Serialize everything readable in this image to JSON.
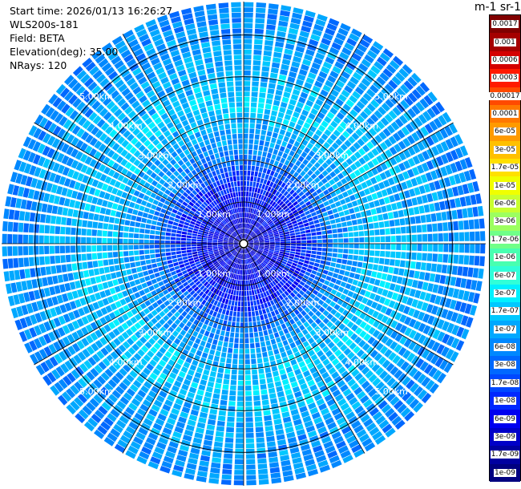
{
  "info": {
    "start_time": "Start time: 2026/01/13 16:26:27",
    "instrument": "WLS200s-181",
    "field": "Field: BETA",
    "elevation": "Elevation(deg): 35.00",
    "nrays": "NRays: 120"
  },
  "colorbar": {
    "title": "m-1 sr-1",
    "levels": [
      {
        "label": "0.0017",
        "color": "#ffffff"
      },
      {
        "label": "0.001",
        "color": "#ffffff"
      },
      {
        "label": "0.0006",
        "color": "#ffffff"
      },
      {
        "label": "0.0003",
        "color": "#ffffff"
      },
      {
        "label": "0.00017",
        "color": "#ffffff"
      },
      {
        "label": "0.0001",
        "color": "#ffffff"
      },
      {
        "label": "6e-05",
        "color": "#ffffff"
      },
      {
        "label": "3e-05",
        "color": "#ffffff"
      },
      {
        "label": "1.7e-05",
        "color": "#ffffff"
      },
      {
        "label": "1e-05",
        "color": "#ffffff"
      },
      {
        "label": "6e-06",
        "color": "#ffffff"
      },
      {
        "label": "3e-06",
        "color": "#ffffff"
      },
      {
        "label": "1.7e-06",
        "color": "#ffffff"
      },
      {
        "label": "1e-06",
        "color": "#ffffff"
      },
      {
        "label": "6e-07",
        "color": "#ffffff"
      },
      {
        "label": "3e-07",
        "color": "#ffffff"
      },
      {
        "label": "1.7e-07",
        "color": "#ffffff"
      },
      {
        "label": "1e-07",
        "color": "#ffffff"
      },
      {
        "label": "6e-08",
        "color": "#ffffff"
      },
      {
        "label": "3e-08",
        "color": "#ffffff"
      },
      {
        "label": "1.7e-08",
        "color": "#ffffff"
      },
      {
        "label": "1e-08",
        "color": "#ffffff"
      },
      {
        "label": "6e-09",
        "color": "#ffffff"
      },
      {
        "label": "3e-09",
        "color": "#ffffff"
      },
      {
        "label": "1.7e-09",
        "color": "#ffffff"
      },
      {
        "label": "1e-09",
        "color": "#ffffff"
      }
    ],
    "swatches": [
      "#800000",
      "#a50000",
      "#d40000",
      "#ff1a00",
      "#ff4a00",
      "#ff7800",
      "#ff9a00",
      "#ffc000",
      "#ffe000",
      "#f0ff00",
      "#c8ff30",
      "#9cff60",
      "#70ff88",
      "#48ffb0",
      "#30ffd8",
      "#00f0ff",
      "#00c8ff",
      "#00a8ff",
      "#0088ff",
      "#0068ff",
      "#0048ff",
      "#0028ff",
      "#0000f0",
      "#0000c8",
      "#0000a0",
      "#000080"
    ]
  },
  "range_labels": [
    "1.00km",
    "2.00km",
    "3.00km",
    "4.00km",
    "5.00km"
  ],
  "chart_data": {
    "type": "heatmap",
    "projection": "polar-ppi",
    "n_rays": 120,
    "range_max_km": 5.8,
    "range_rings_km": [
      1,
      2,
      3,
      4,
      5
    ],
    "azimuth_spokes_deg": [
      0,
      30,
      60,
      90,
      120,
      150,
      180,
      210,
      240,
      270,
      300,
      330
    ],
    "value_profile": [
      {
        "range_km": 0.0,
        "level": 2
      },
      {
        "range_km": 1.5,
        "level": 4
      },
      {
        "range_km": 2.2,
        "level": 7
      },
      {
        "range_km": 3.3,
        "level": 9
      },
      {
        "range_km": 4.5,
        "level": 8
      },
      {
        "range_km": 5.6,
        "level": 7
      }
    ]
  }
}
